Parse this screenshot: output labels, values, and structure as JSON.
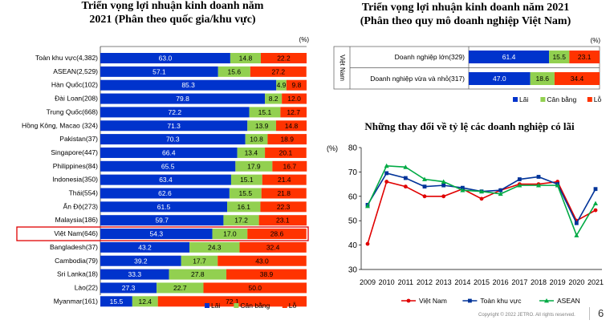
{
  "page": {
    "copyright": "Copyright © 2022 JETRO. All rights reserved.",
    "page_number": "6",
    "colors": {
      "lai": "#0033cc",
      "can_bang": "#92d050",
      "lo": "#ff3300",
      "highlight": "#e00000"
    }
  },
  "chart_data": [
    {
      "id": "left",
      "type": "bar",
      "stacked": true,
      "orientation": "horizontal",
      "title": [
        "Triển vọng lợi nhuận kinh doanh năm",
        "2021  (Phân theo quốc gia/khu vực)"
      ],
      "unit": "(%)",
      "xlim": [
        0,
        100
      ],
      "highlight_category": "Việt Nam(646)",
      "categories": [
        "Toàn khu vực(4,382)",
        "ASEAN(2,529)",
        "Hàn Quốc(102)",
        "Đài Loan(208)",
        "Trung Quốc(668)",
        "Hồng Kông, Macao (324)",
        "Pakistan(37)",
        "Singapore(447)",
        "Philippines(84)",
        "Indonesia(350)",
        "Thái(554)",
        "Ấn Độ(273)",
        "Malaysia(186)",
        "Việt Nam(646)",
        "Bangladesh(37)",
        "Cambodia(79)",
        "Sri Lanka(18)",
        "Lào(22)",
        "Myanmar(161)"
      ],
      "series": [
        {
          "name": "Lãi",
          "color": "#0033cc",
          "values": [
            63.0,
            57.1,
            85.3,
            79.8,
            72.2,
            71.3,
            70.3,
            66.4,
            65.5,
            63.4,
            62.6,
            61.5,
            59.7,
            54.3,
            43.2,
            39.2,
            33.3,
            27.3,
            15.5
          ]
        },
        {
          "name": "Cân bằng",
          "color": "#92d050",
          "values": [
            14.8,
            15.6,
            4.9,
            8.2,
            15.1,
            13.9,
            10.8,
            13.4,
            17.9,
            15.1,
            15.5,
            16.1,
            17.2,
            17.0,
            24.3,
            17.7,
            27.8,
            22.7,
            12.4
          ]
        },
        {
          "name": "Lỗ",
          "color": "#ff3300",
          "values": [
            22.2,
            27.2,
            9.8,
            12.0,
            12.7,
            14.8,
            18.9,
            20.1,
            16.7,
            21.4,
            21.8,
            22.3,
            23.1,
            28.6,
            32.4,
            43.0,
            38.9,
            50.0,
            72.1
          ]
        }
      ],
      "value_labels": [
        [
          "63.0",
          "14.8",
          "22.2"
        ],
        [
          "57.1",
          "15.6",
          "27.2"
        ],
        [
          "85.3",
          "4.9",
          "9.8"
        ],
        [
          "79.8",
          "8.2",
          "12.0"
        ],
        [
          "72.2",
          "15.1",
          "12.7"
        ],
        [
          "71.3",
          "13.9",
          "14.8"
        ],
        [
          "70.3",
          "10.8",
          "18.9"
        ],
        [
          "66.4",
          "13.4",
          "20.1"
        ],
        [
          "65.5",
          "17.9",
          "16.7"
        ],
        [
          "63.4",
          "15.1",
          "21.4"
        ],
        [
          "62.6",
          "15.5",
          "21.8"
        ],
        [
          "61.5",
          "16.1",
          "22.3"
        ],
        [
          "59.7",
          "17.2",
          "23.1"
        ],
        [
          "54.3",
          "17.0",
          "28.6"
        ],
        [
          "43.2",
          "24.3",
          "32.4"
        ],
        [
          "39.2",
          "17.7",
          "43.0"
        ],
        [
          "33.3",
          "27.8",
          "38.9"
        ],
        [
          "27.3",
          "22.7",
          "50.0"
        ],
        [
          "15.5",
          "12.4",
          "72.1"
        ]
      ],
      "legend": [
        "Lãi",
        "Cân bằng",
        "Lỗ"
      ]
    },
    {
      "id": "right-top",
      "type": "bar",
      "stacked": true,
      "orientation": "horizontal",
      "title": [
        "Triển vọng lợi nhuận kinh doanh năm 2021",
        "(Phân theo quy mô doanh nghiệp Việt Nam)"
      ],
      "unit": "(%)",
      "group_label": "Việt Nam",
      "xlim": [
        0,
        100
      ],
      "categories": [
        "Doanh nghiệp lớn(329)",
        "Doanh nghiệp vừa và nhỏ(317)"
      ],
      "series": [
        {
          "name": "Lãi",
          "color": "#0033cc",
          "values": [
            61.4,
            47.0
          ]
        },
        {
          "name": "Cân bằng",
          "color": "#92d050",
          "values": [
            15.5,
            18.6
          ]
        },
        {
          "name": "Lỗ",
          "color": "#ff3300",
          "values": [
            23.1,
            34.4
          ]
        }
      ],
      "value_labels": [
        [
          "61.4",
          "15.5",
          "23.1"
        ],
        [
          "47.0",
          "18.6",
          "34.4"
        ]
      ],
      "legend": [
        "Lãi",
        "Cân bằng",
        "Lỗ"
      ]
    },
    {
      "id": "right-bottom",
      "type": "line",
      "title": "Những thay đổi về tỷ lệ các doanh nghiệp có lãi",
      "unit": "(%)",
      "x": [
        "2009",
        "2010",
        "2011",
        "2012",
        "2013",
        "2014",
        "2015",
        "2016",
        "2017",
        "2018",
        "2019",
        "2020",
        "2021"
      ],
      "ylim": [
        30,
        80
      ],
      "yticks": [
        "30",
        "40",
        "50",
        "60",
        "70",
        "80"
      ],
      "grid": false,
      "legend_position": "bottom",
      "series": [
        {
          "name": "Việt Nam",
          "color": "#e00000",
          "marker": "circle",
          "values": [
            40.5,
            66.0,
            64.0,
            60.0,
            60.0,
            63.0,
            59.0,
            62.5,
            65.0,
            65.0,
            66.0,
            50.0,
            54.3
          ]
        },
        {
          "name": "Toàn khu vực",
          "color": "#003399",
          "marker": "square",
          "values": [
            56.5,
            69.5,
            67.5,
            64.0,
            64.5,
            63.5,
            62.0,
            62.5,
            67.0,
            68.0,
            65.0,
            49.0,
            63.0
          ]
        },
        {
          "name": "ASEAN",
          "color": "#00aa44",
          "marker": "triangle",
          "values": [
            56.0,
            72.5,
            72.0,
            67.0,
            66.0,
            62.5,
            62.0,
            61.0,
            64.5,
            64.5,
            64.5,
            44.0,
            57.1
          ]
        }
      ]
    }
  ]
}
